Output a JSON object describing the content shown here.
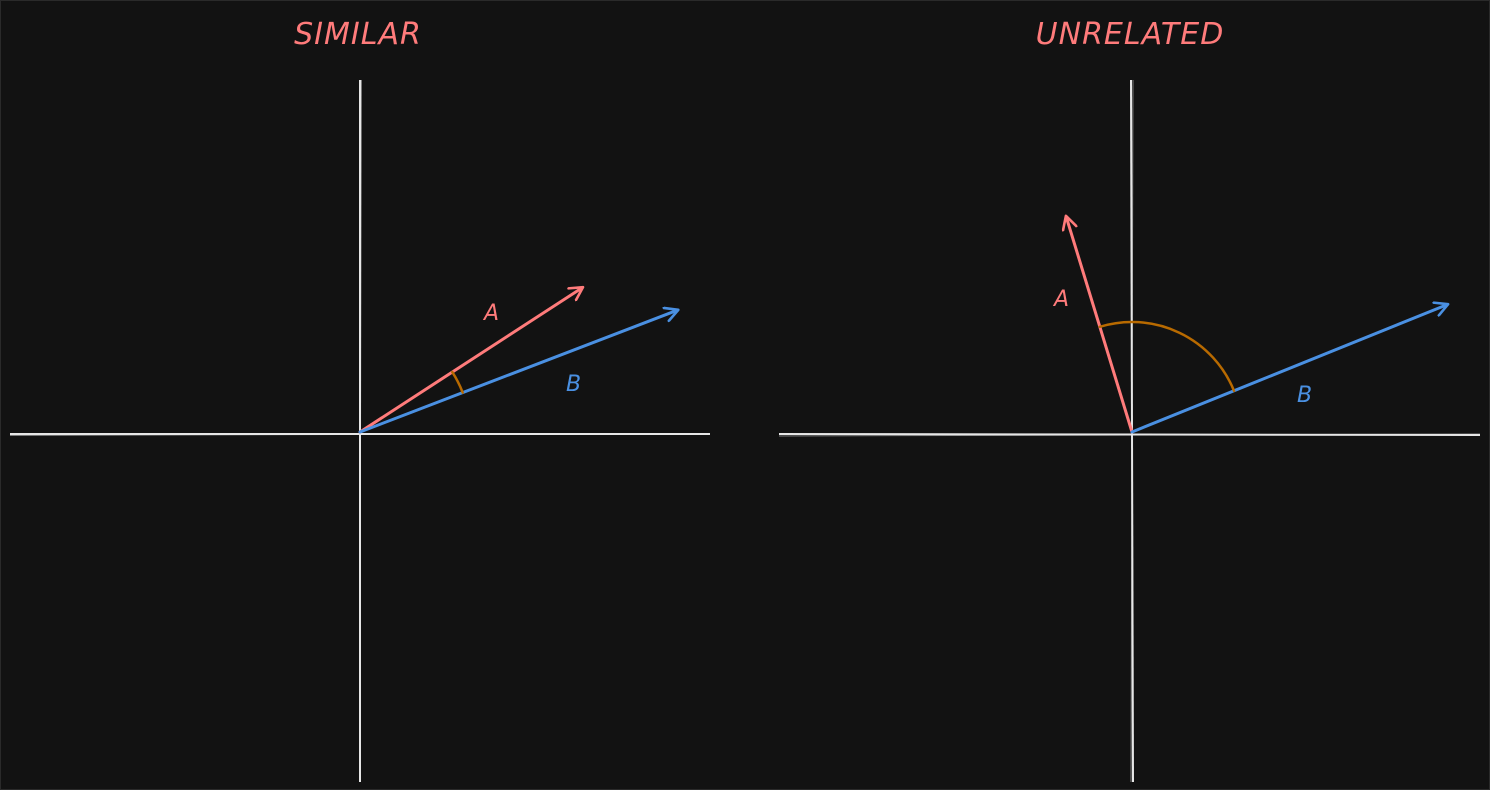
{
  "colors": {
    "background": "#121212",
    "border": "#2a2a2a",
    "axis": "#e6e6e6",
    "vector_a": "#ff7b7b",
    "vector_b": "#4a90e2",
    "angle_arc": "#b86a00",
    "title": "#ff7b7b"
  },
  "panels": [
    {
      "id": "similar",
      "title": "SIMILAR",
      "vectors": [
        {
          "name": "A",
          "label": "A",
          "angle_deg": 33
        },
        {
          "name": "B",
          "label": "B",
          "angle_deg": 21
        }
      ],
      "angle_between_deg": 12
    },
    {
      "id": "unrelated",
      "title": "UNRELATED",
      "vectors": [
        {
          "name": "A",
          "label": "A",
          "angle_deg": 107
        },
        {
          "name": "B",
          "label": "B",
          "angle_deg": 22
        }
      ],
      "angle_between_deg": 85
    }
  ]
}
